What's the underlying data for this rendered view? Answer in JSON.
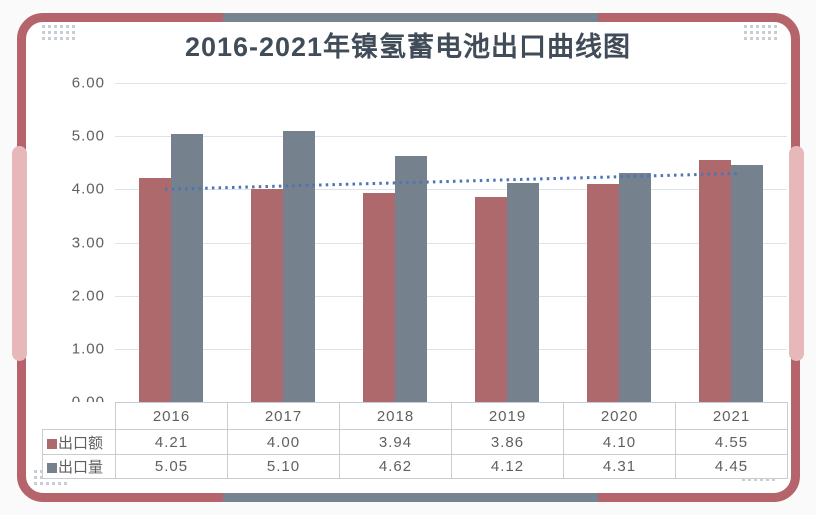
{
  "title": "2016-2021年镍氢蓄电池出口曲线图",
  "colors": {
    "card_border": "#b5646b",
    "border_accent": "#77848f",
    "side_tab": "#e7b8ba",
    "card_bg": "#ffffff",
    "page_bg": "#fbfafa",
    "title_text": "#414c59",
    "axis_text": "#606060",
    "gridline": "#dde2eb",
    "table_border": "#c8cdd4",
    "corner_dot": "#c9ced5"
  },
  "chart_data": {
    "type": "bar",
    "title": "2016-2021年镍氢蓄电池出口曲线图",
    "categories": [
      "2016",
      "2017",
      "2018",
      "2019",
      "2020",
      "2021"
    ],
    "series": [
      {
        "name": "出口额",
        "color": "#ae696d",
        "values": [
          4.21,
          4.0,
          3.94,
          3.86,
          4.1,
          4.55
        ]
      },
      {
        "name": "出口量",
        "color": "#76818e",
        "values": [
          5.05,
          5.1,
          4.62,
          4.12,
          4.31,
          4.45
        ]
      }
    ],
    "trendline": {
      "style": "dotted",
      "color": "#4d75b5",
      "start_value": 4.0,
      "end_value": 4.3
    },
    "ylim": [
      0,
      6
    ],
    "ytick_step": 1,
    "ytick_labels": [
      "0.00",
      "1.00",
      "2.00",
      "3.00",
      "4.00",
      "5.00",
      "6.00"
    ],
    "grid": true,
    "legend_position": "table-rows-left"
  }
}
